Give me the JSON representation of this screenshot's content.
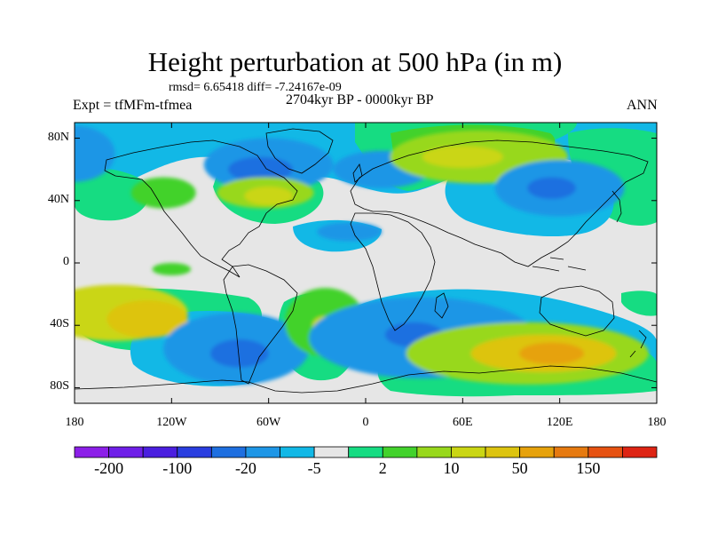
{
  "header": {
    "title": "Height perturbation at 500 hPa (in m)",
    "stats": "rmsd= 6.65418 diff= -7.24167e-09",
    "experiment": "Expt = tfMFm-tfmea",
    "period": "2704kyr BP - 0000kyr BP",
    "season": "ANN"
  },
  "axes": {
    "lat_labels": [
      {
        "text": "80N",
        "lat": 80
      },
      {
        "text": "40N",
        "lat": 40
      },
      {
        "text": "0",
        "lat": 0
      },
      {
        "text": "40S",
        "lat": -40
      },
      {
        "text": "80S",
        "lat": -80
      }
    ],
    "lon_labels": [
      {
        "text": "180",
        "lon": -180
      },
      {
        "text": "120W",
        "lon": -120
      },
      {
        "text": "60W",
        "lon": -60
      },
      {
        "text": "0",
        "lon": 0
      },
      {
        "text": "60E",
        "lon": 60
      },
      {
        "text": "120E",
        "lon": 120
      },
      {
        "text": "180",
        "lon": 180
      }
    ],
    "lon_range": [
      -180,
      180
    ],
    "lat_range": [
      -90,
      90
    ]
  },
  "colorbar": {
    "colors": [
      "#8c1fe8",
      "#6f1fe8",
      "#4b1fe0",
      "#2a3ee0",
      "#1e6fe0",
      "#1e96e6",
      "#12b8e6",
      "#e6e6e6",
      "#16dc82",
      "#42d22c",
      "#98d81c",
      "#cad614",
      "#ddc410",
      "#e6a20c",
      "#e67a10",
      "#e65212",
      "#de2414"
    ],
    "labels": [
      {
        "text": "-200",
        "index": 1
      },
      {
        "text": "-100",
        "index": 3
      },
      {
        "text": "-20",
        "index": 5
      },
      {
        "text": "-5",
        "index": 7
      },
      {
        "text": "2",
        "index": 9
      },
      {
        "text": "10",
        "index": 11
      },
      {
        "text": "50",
        "index": 13
      },
      {
        "text": "150",
        "index": 15
      }
    ]
  },
  "field_anomalies": [
    {
      "lon": -155,
      "lat": -32,
      "rx": 45,
      "ry": 18,
      "level": 11
    },
    {
      "lon": -135,
      "lat": -36,
      "rx": 25,
      "ry": 12,
      "level": 12
    },
    {
      "lon": -80,
      "lat": -55,
      "rx": 45,
      "ry": 23,
      "level": 5
    },
    {
      "lon": -78,
      "lat": -58,
      "rx": 18,
      "ry": 9,
      "level": 4
    },
    {
      "lon": -25,
      "lat": -38,
      "rx": 25,
      "ry": 22,
      "level": 9
    },
    {
      "lon": -25,
      "lat": -40,
      "rx": 8,
      "ry": 6,
      "level": 11
    },
    {
      "lon": 35,
      "lat": -48,
      "rx": 70,
      "ry": 26,
      "level": 5
    },
    {
      "lon": 30,
      "lat": -46,
      "rx": 18,
      "ry": 8,
      "level": 4
    },
    {
      "lon": 100,
      "lat": -58,
      "rx": 75,
      "ry": 20,
      "level": 10
    },
    {
      "lon": 110,
      "lat": -58,
      "rx": 45,
      "ry": 12,
      "level": 12
    },
    {
      "lon": 115,
      "lat": -58,
      "rx": 20,
      "ry": 7,
      "level": 13
    },
    {
      "lon": -60,
      "lat": 63,
      "rx": 40,
      "ry": 17,
      "level": 5
    },
    {
      "lon": -65,
      "lat": 60,
      "rx": 20,
      "ry": 8,
      "level": 4
    },
    {
      "lon": 10,
      "lat": 60,
      "rx": 30,
      "ry": 12,
      "level": 5
    },
    {
      "lon": -62,
      "lat": 45,
      "rx": 30,
      "ry": 10,
      "level": 10
    },
    {
      "lon": -60,
      "lat": 43,
      "rx": 15,
      "ry": 6,
      "level": 11
    },
    {
      "lon": 70,
      "lat": 68,
      "rx": 55,
      "ry": 17,
      "level": 10
    },
    {
      "lon": 60,
      "lat": 68,
      "rx": 25,
      "ry": 7,
      "level": 11
    },
    {
      "lon": 120,
      "lat": 48,
      "rx": 40,
      "ry": 18,
      "level": 5
    },
    {
      "lon": 115,
      "lat": 48,
      "rx": 15,
      "ry": 7,
      "level": 4
    },
    {
      "lon": -125,
      "lat": 45,
      "rx": 20,
      "ry": 10,
      "level": 9
    },
    {
      "lon": -180,
      "lat": 70,
      "rx": 25,
      "ry": 18,
      "level": 5
    },
    {
      "lon": -10,
      "lat": 20,
      "rx": 20,
      "ry": 6,
      "level": 5
    },
    {
      "lon": -120,
      "lat": -4,
      "rx": 12,
      "ry": 4,
      "level": 9
    }
  ]
}
